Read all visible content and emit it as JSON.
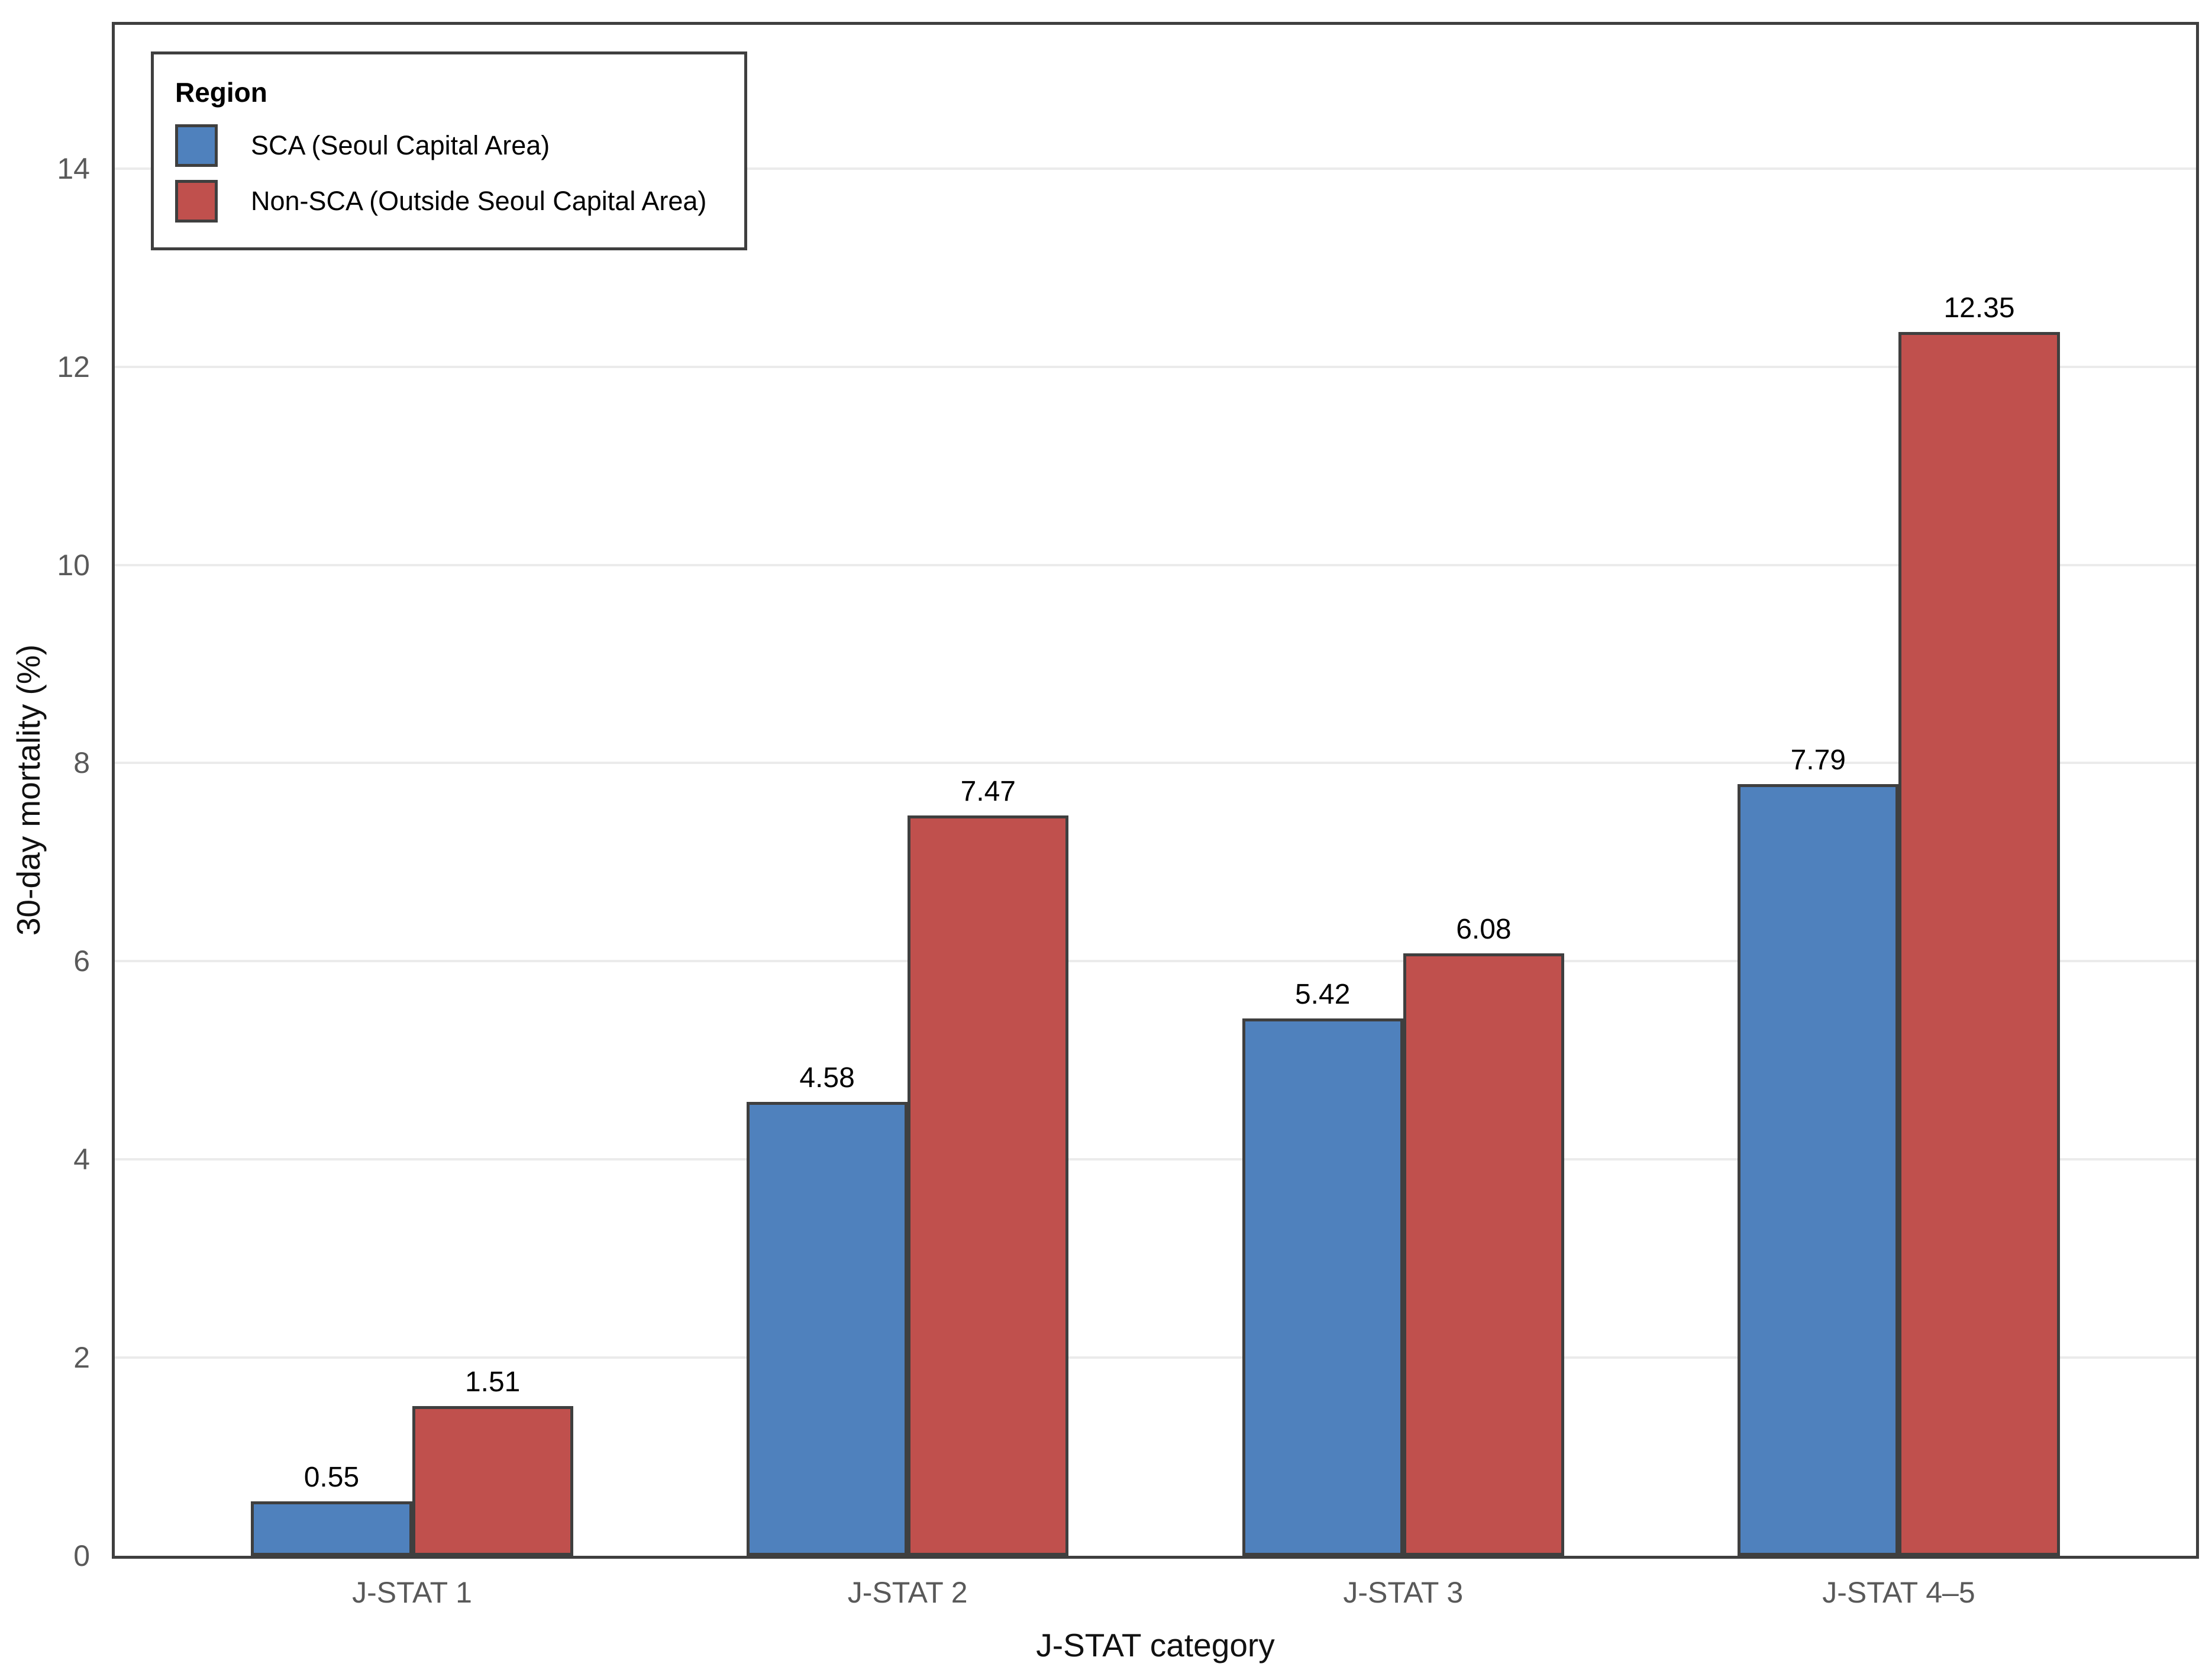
{
  "chart_data": {
    "type": "bar",
    "title": "",
    "categories": [
      "J-STAT 1",
      "J-STAT 2",
      "J-STAT 3",
      "J-STAT 4–5"
    ],
    "series": [
      {
        "name": "SCA (Seoul Capital Area)",
        "color": "#4F81BD",
        "values": [
          0.55,
          4.58,
          5.42,
          7.79
        ],
        "labels": [
          "0.55",
          "4.58",
          "5.42",
          "7.79"
        ]
      },
      {
        "name": "Non-SCA (Outside Seoul Capital Area)",
        "color": "#C0504D",
        "values": [
          1.51,
          7.47,
          6.08,
          12.35
        ],
        "labels": [
          "1.51",
          "7.47",
          "6.08",
          "12.35"
        ]
      }
    ],
    "xlabel": "J-STAT category",
    "ylabel": "30-day mortality (%)",
    "ylim": [
      0,
      15.45
    ],
    "yticks": [
      0,
      2,
      4,
      6,
      8,
      10,
      12,
      14
    ],
    "ytick_labels": [
      "0",
      "2",
      "4",
      "6",
      "8",
      "10",
      "12",
      "14"
    ],
    "legend_title": "Region",
    "legend_position": "top-left-inside",
    "grid": "horizontal-major-only",
    "value_labels": true,
    "bar_border_color": "#3F3F3F",
    "panel_border_color": "#3F3F3F",
    "gridline_color": "#EBEBEB",
    "tick_text_color": "#595959",
    "label_text_color": "#000000"
  }
}
